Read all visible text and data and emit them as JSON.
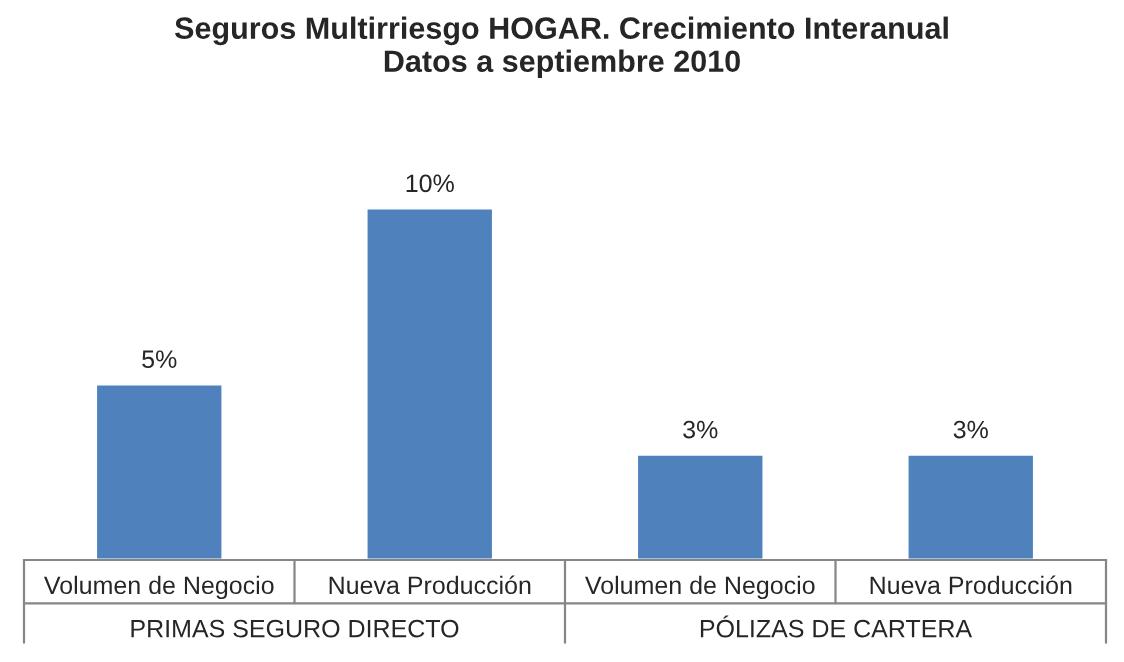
{
  "chart_data": {
    "type": "bar",
    "title": "Seguros Multirriesgo HOGAR. Crecimiento Interanual\nDatos a septiembre 2010",
    "categories": [
      "Volumen de Negocio",
      "Nueva Producción",
      "Volumen de Negocio",
      "Nueva Producción"
    ],
    "values": [
      5,
      10,
      3,
      3
    ],
    "value_labels": [
      "5%",
      "10%",
      "3%",
      "3%"
    ],
    "color": "#4f81bd",
    "annotations": [
      "PRIMAS SEGURO DIRECTO",
      "PÓLIZAS DE CARTERA"
    ]
  }
}
